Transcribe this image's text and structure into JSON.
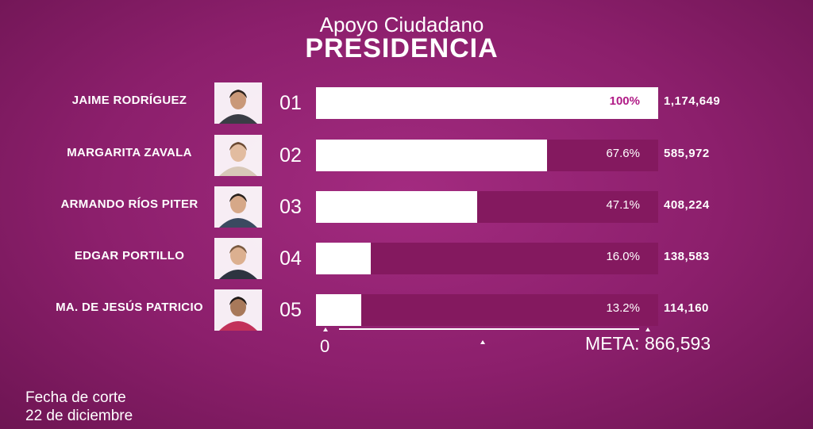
{
  "header": {
    "subtitle": "Apoyo Ciudadano",
    "title": "PRESIDENCIA"
  },
  "chart_data": {
    "type": "bar",
    "title": "PRESIDENCIA",
    "subtitle": "Apoyo Ciudadano",
    "categories": [
      "JAIME RODRÍGUEZ",
      "MARGARITA ZAVALA",
      "ARMANDO RÍOS PITER",
      "EDGAR PORTILLO",
      "MA. DE JESÚS PATRICIO"
    ],
    "ranks": [
      "01",
      "02",
      "03",
      "04",
      "05"
    ],
    "percent_values": [
      100,
      67.6,
      47.1,
      16.0,
      13.2
    ],
    "percent_labels": [
      "100%",
      "67.6%",
      "47.1%",
      "16.0%",
      "13.2%"
    ],
    "vote_labels": [
      "1,174,649",
      "585,972",
      "408,224",
      "138,583",
      "114,160"
    ],
    "values": [
      1174649,
      585972,
      408224,
      138583,
      114160
    ],
    "goal": 866593,
    "axis_min_label": "0",
    "goal_label": "META: 866,593",
    "xlim": [
      0,
      100
    ]
  },
  "footer": {
    "line1": "Fecha de corte",
    "line2": "22 de diciembre"
  },
  "colors": {
    "background": "#8c1f6c",
    "track": "#84195f",
    "bar": "#ffffff",
    "highlight": "#b01b86"
  },
  "icons": [
    "candidate-photo-icon"
  ]
}
